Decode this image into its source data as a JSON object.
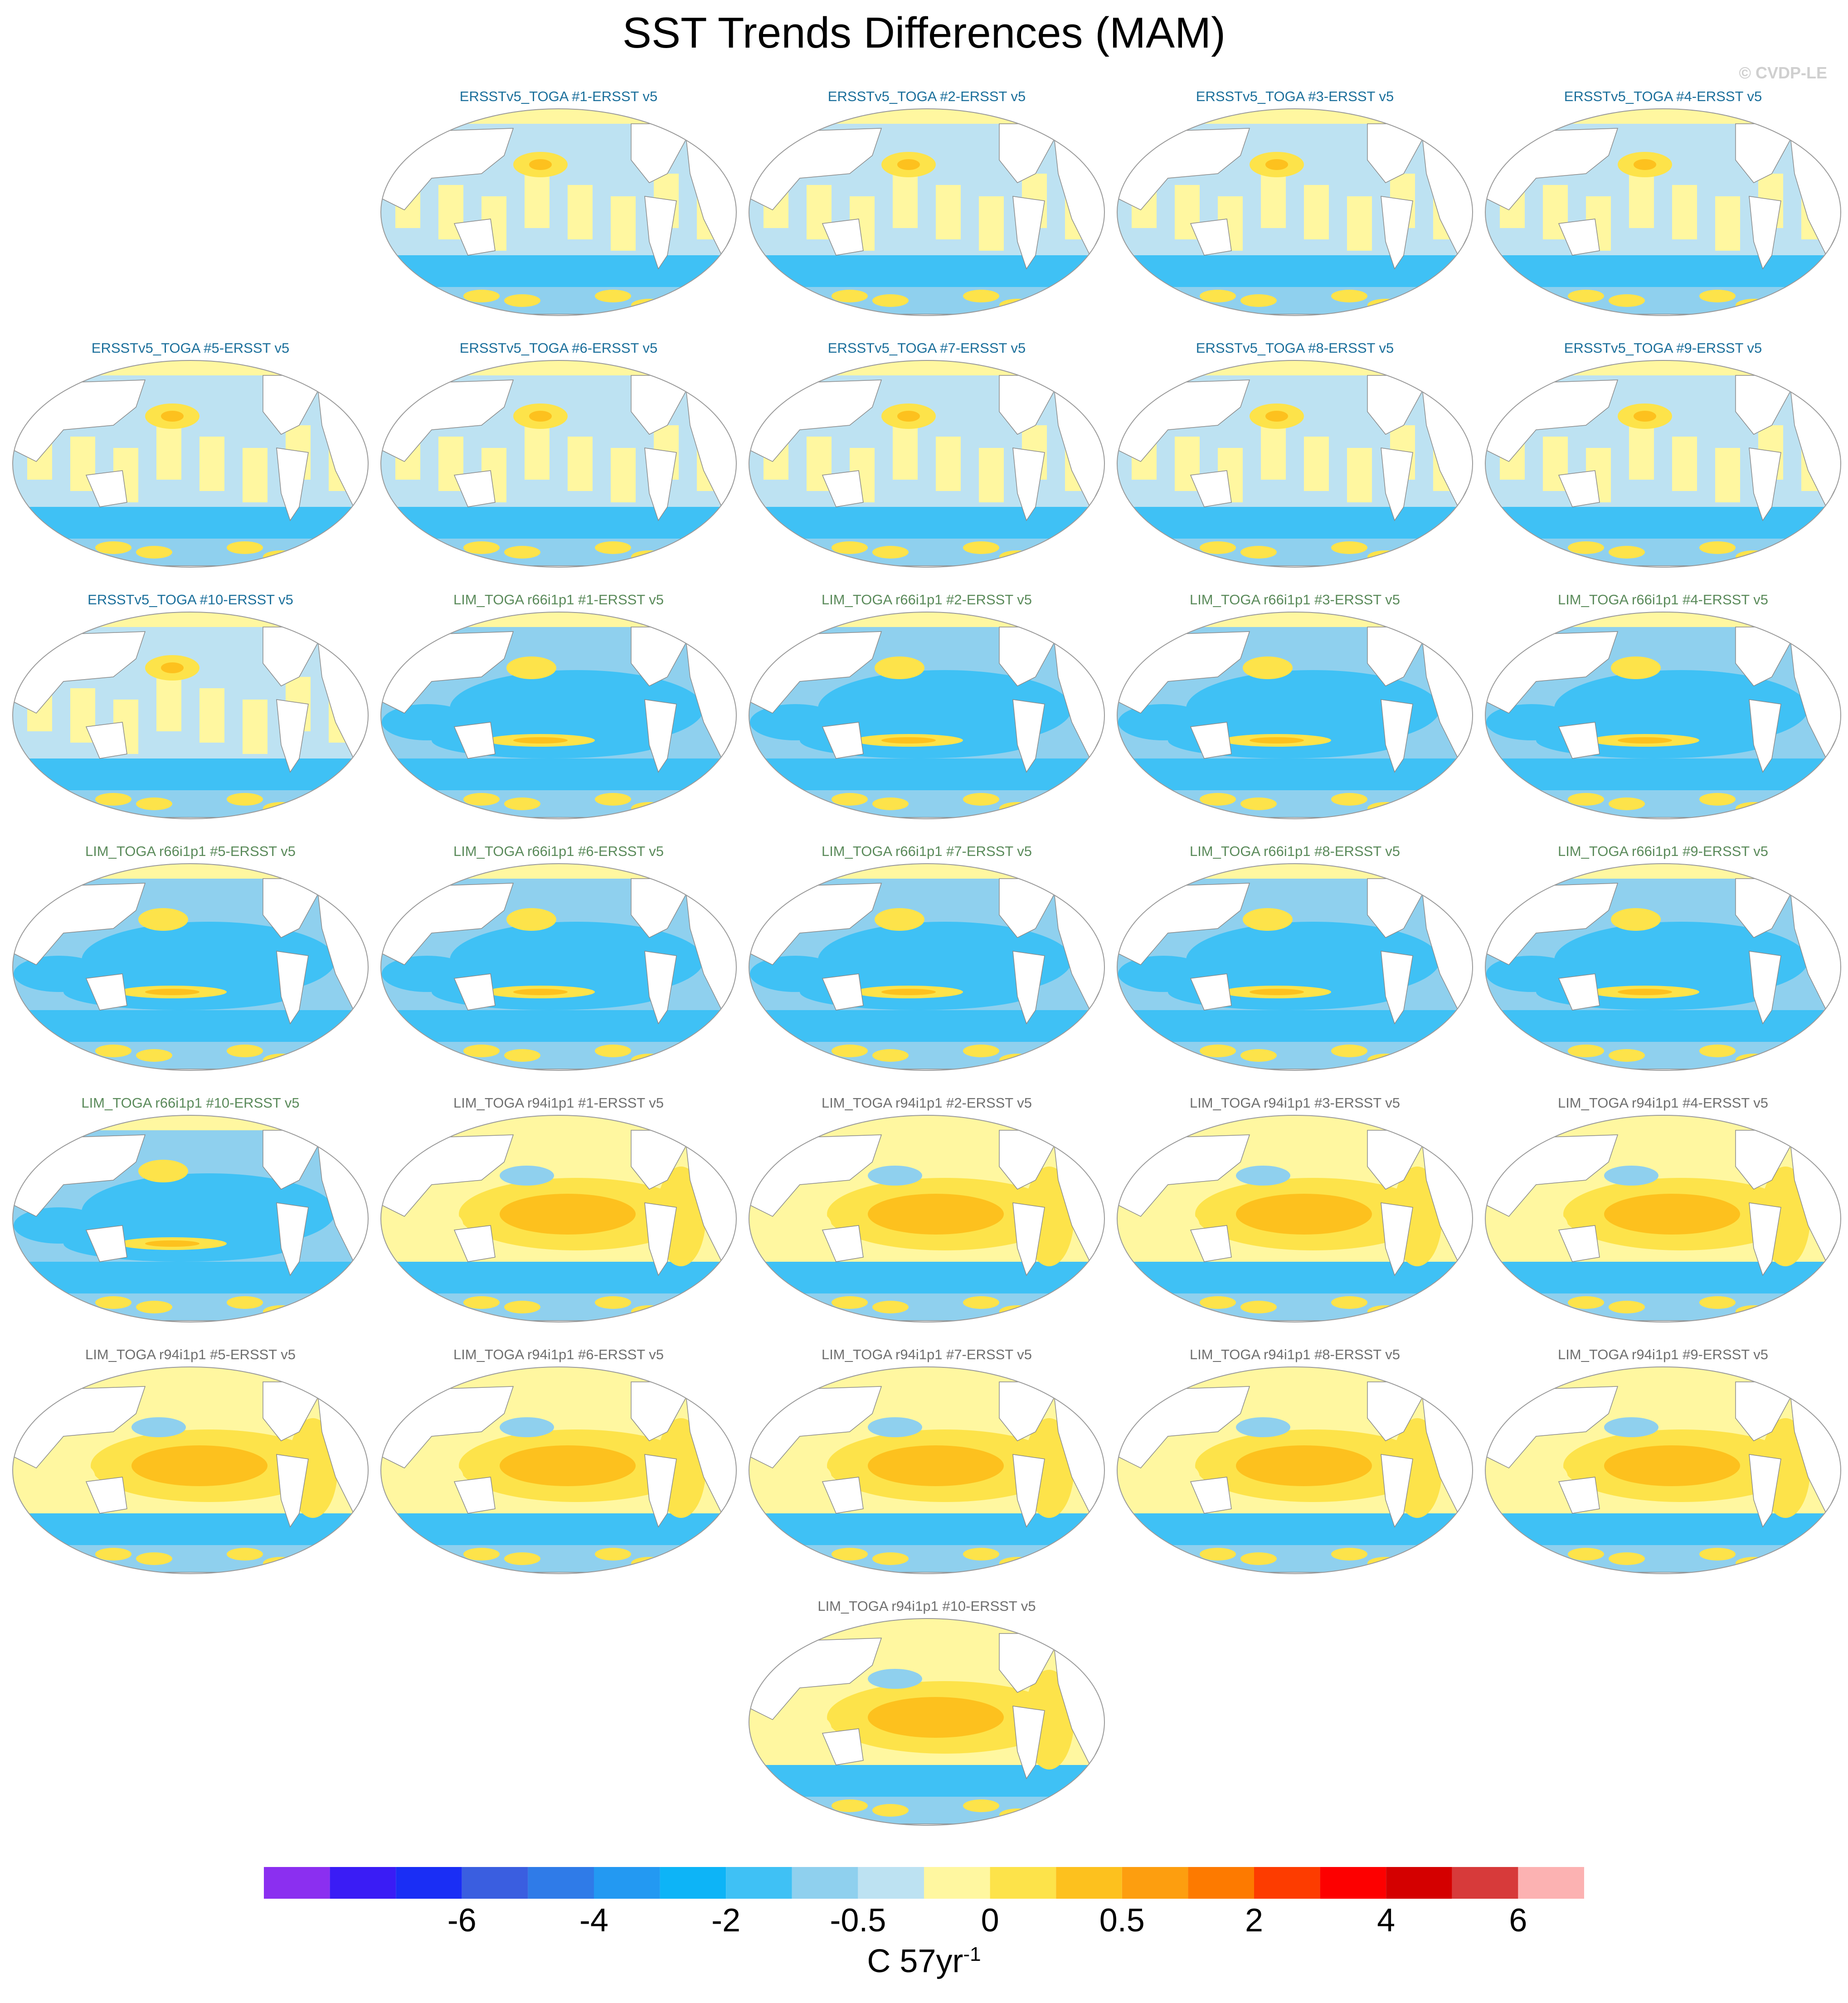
{
  "title": "SST Trends Differences (MAM)",
  "copyright": "© CVDP-LE",
  "panels": [
    {
      "label": "ERSSTv5_TOGA #1-ERSST v5",
      "group": "erss"
    },
    {
      "label": "ERSSTv5_TOGA #2-ERSST v5",
      "group": "erss"
    },
    {
      "label": "ERSSTv5_TOGA #3-ERSST v5",
      "group": "erss"
    },
    {
      "label": "ERSSTv5_TOGA #4-ERSST v5",
      "group": "erss"
    },
    {
      "label": "ERSSTv5_TOGA #5-ERSST v5",
      "group": "erss"
    },
    {
      "label": "ERSSTv5_TOGA #6-ERSST v5",
      "group": "erss"
    },
    {
      "label": "ERSSTv5_TOGA #7-ERSST v5",
      "group": "erss"
    },
    {
      "label": "ERSSTv5_TOGA #8-ERSST v5",
      "group": "erss"
    },
    {
      "label": "ERSSTv5_TOGA #9-ERSST v5",
      "group": "erss"
    },
    {
      "label": "ERSSTv5_TOGA #10-ERSST v5",
      "group": "erss"
    },
    {
      "label": "LIM_TOGA r66i1p1 #1-ERSST v5",
      "group": "r66"
    },
    {
      "label": "LIM_TOGA r66i1p1 #2-ERSST v5",
      "group": "r66"
    },
    {
      "label": "LIM_TOGA r66i1p1 #3-ERSST v5",
      "group": "r66"
    },
    {
      "label": "LIM_TOGA r66i1p1 #4-ERSST v5",
      "group": "r66"
    },
    {
      "label": "LIM_TOGA r66i1p1 #5-ERSST v5",
      "group": "r66"
    },
    {
      "label": "LIM_TOGA r66i1p1 #6-ERSST v5",
      "group": "r66"
    },
    {
      "label": "LIM_TOGA r66i1p1 #7-ERSST v5",
      "group": "r66"
    },
    {
      "label": "LIM_TOGA r66i1p1 #8-ERSST v5",
      "group": "r66"
    },
    {
      "label": "LIM_TOGA r66i1p1 #9-ERSST v5",
      "group": "r66"
    },
    {
      "label": "LIM_TOGA r66i1p1 #10-ERSST v5",
      "group": "r66"
    },
    {
      "label": "LIM_TOGA r94i1p1 #1-ERSST v5",
      "group": "r94"
    },
    {
      "label": "LIM_TOGA r94i1p1 #2-ERSST v5",
      "group": "r94"
    },
    {
      "label": "LIM_TOGA r94i1p1 #3-ERSST v5",
      "group": "r94"
    },
    {
      "label": "LIM_TOGA r94i1p1 #4-ERSST v5",
      "group": "r94"
    },
    {
      "label": "LIM_TOGA r94i1p1 #5-ERSST v5",
      "group": "r94"
    },
    {
      "label": "LIM_TOGA r94i1p1 #6-ERSST v5",
      "group": "r94"
    },
    {
      "label": "LIM_TOGA r94i1p1 #7-ERSST v5",
      "group": "r94"
    },
    {
      "label": "LIM_TOGA r94i1p1 #8-ERSST v5",
      "group": "r94"
    },
    {
      "label": "LIM_TOGA r94i1p1 #9-ERSST v5",
      "group": "r94"
    },
    {
      "label": "LIM_TOGA r94i1p1 #10-ERSST v5",
      "group": "r94"
    }
  ],
  "colorbar": {
    "colors": [
      "#8b2ff0",
      "#3a1cf5",
      "#1a2ef5",
      "#3a5ee0",
      "#2f7be8",
      "#2399f2",
      "#0db4f7",
      "#3fc1f5",
      "#8fd0ee",
      "#bde2f2",
      "#fff7a0",
      "#fde34a",
      "#fdc11e",
      "#fd9e0f",
      "#fd7a00",
      "#fd3c00",
      "#fd0000",
      "#d40000",
      "#d73a3a",
      "#fcb2b2"
    ],
    "ticks": [
      "-6",
      "-4",
      "-2",
      "-0.5",
      "0",
      "0.5",
      "2",
      "4",
      "6"
    ],
    "units": "C 57yr",
    "units_sup": "-1"
  },
  "map_colors": {
    "ocean_neutral": "#bde2f2",
    "light_blue": "#8fd0ee",
    "blue": "#3fc1f5",
    "deep_blue": "#0db4f7",
    "yellow": "#fff7a0",
    "gold": "#fde34a",
    "orange": "#fdc11e",
    "land": "#ffffff"
  }
}
